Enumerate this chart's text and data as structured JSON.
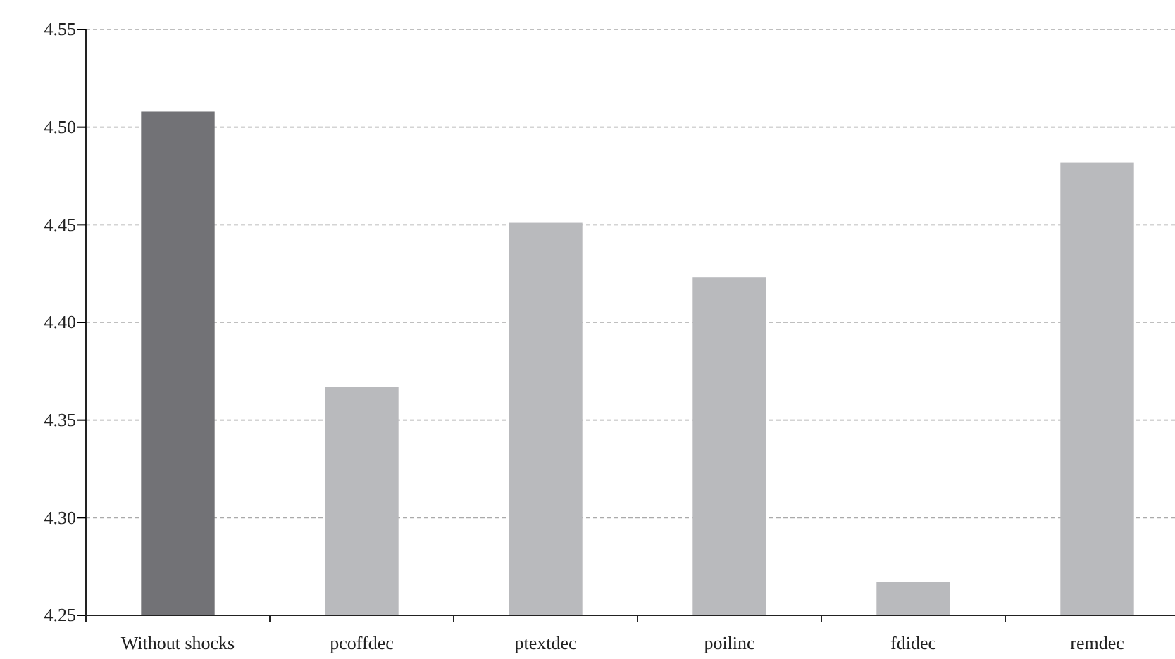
{
  "chart_data": {
    "type": "bar",
    "categories": [
      "Without shocks",
      "pcoffdec",
      "ptextdec",
      "poilinc",
      "fdidec",
      "remdec"
    ],
    "values": [
      4.508,
      4.367,
      4.451,
      4.423,
      4.267,
      4.482
    ],
    "colors": [
      "#727276",
      "#b9babd",
      "#b9babd",
      "#b9babd",
      "#b9babd",
      "#b9babd"
    ],
    "ylim": [
      4.25,
      4.55
    ],
    "yticks": [
      {
        "value": 4.25,
        "label": "4.25"
      },
      {
        "value": 4.3,
        "label": "4.30"
      },
      {
        "value": 4.35,
        "label": "4.35"
      },
      {
        "value": 4.4,
        "label": "4.40"
      },
      {
        "value": 4.45,
        "label": "4.45"
      },
      {
        "value": 4.5,
        "label": "4.50"
      },
      {
        "value": 4.55,
        "label": "4.55"
      }
    ],
    "grid": "y"
  }
}
